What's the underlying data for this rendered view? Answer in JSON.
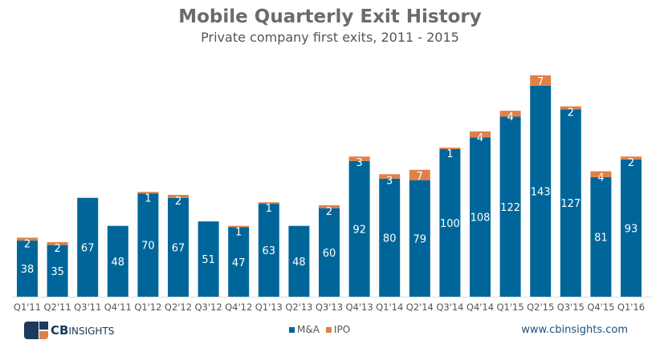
{
  "chart_data": {
    "type": "bar",
    "stacked": true,
    "title": "Mobile Quarterly Exit History",
    "subtitle": "Private company first exits, 2011 - 2015",
    "categories": [
      "Q1'11",
      "Q2'11",
      "Q3'11",
      "Q4'11",
      "Q1'12",
      "Q2'12",
      "Q3'12",
      "Q4'12",
      "Q1'13",
      "Q2'13",
      "Q3'13",
      "Q4'13",
      "Q1'14",
      "Q2'14",
      "Q3'14",
      "Q4'14",
      "Q1'15",
      "Q2'15",
      "Q3'15",
      "Q4'15",
      "Q1'16"
    ],
    "series": [
      {
        "name": "M&A",
        "color": "#00669a",
        "values": [
          38,
          35,
          67,
          48,
          70,
          67,
          51,
          47,
          63,
          48,
          60,
          92,
          80,
          79,
          100,
          108,
          122,
          143,
          127,
          81,
          93
        ]
      },
      {
        "name": "IPO",
        "color": "#df8147",
        "values": [
          2,
          2,
          0,
          0,
          1,
          2,
          0,
          1,
          1,
          0,
          2,
          3,
          3,
          7,
          1,
          4,
          4,
          7,
          2,
          4,
          2
        ]
      }
    ],
    "ylim": [
      0,
      150
    ],
    "grid": false,
    "legend": "bottom-center"
  },
  "footer": {
    "brand": "CB",
    "brand_suffix": "INSIGHTS",
    "url": "www.cbinsights.com"
  }
}
